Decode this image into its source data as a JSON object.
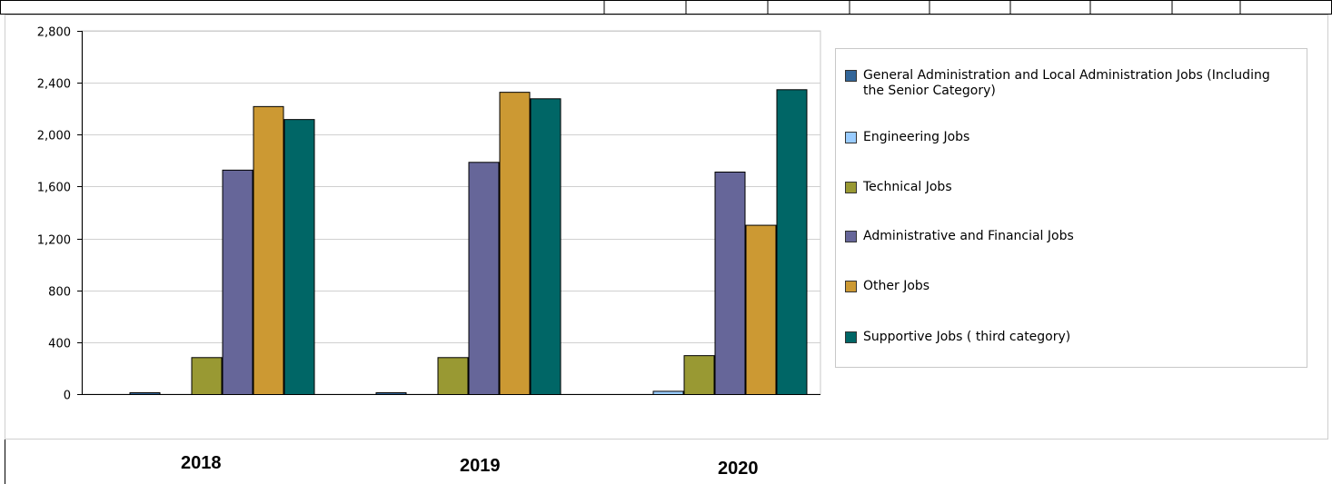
{
  "chart_data": {
    "type": "bar",
    "categories": [
      "2018",
      "2019",
      "2020"
    ],
    "ylim": [
      0,
      2800
    ],
    "yticks": [
      0,
      400,
      800,
      1200,
      1600,
      2000,
      2400,
      2800
    ],
    "ytick_labels": [
      "0",
      "400",
      "800",
      "1,200",
      "1,600",
      "2,000",
      "2,400",
      "2,800"
    ],
    "grid": true,
    "legend_position": "right",
    "series": [
      {
        "name": "General Administration and Local Administration Jobs (Including the Senior Category)",
        "color": "#336699",
        "values": [
          10,
          10,
          0
        ]
      },
      {
        "name": "Engineering Jobs",
        "color": "#99ccff",
        "values": [
          0,
          0,
          25
        ]
      },
      {
        "name": "Technical Jobs",
        "color": "#999933",
        "values": [
          285,
          285,
          300
        ]
      },
      {
        "name": "Administrative and Financial Jobs",
        "color": "#666699",
        "values": [
          1730,
          1790,
          1715
        ]
      },
      {
        "name": "Other Jobs",
        "color": "#cc9933",
        "values": [
          2220,
          2330,
          1305
        ]
      },
      {
        "name": "Supportive Jobs ( third category)",
        "color": "#006666",
        "values": [
          2120,
          2280,
          2350
        ]
      }
    ]
  }
}
